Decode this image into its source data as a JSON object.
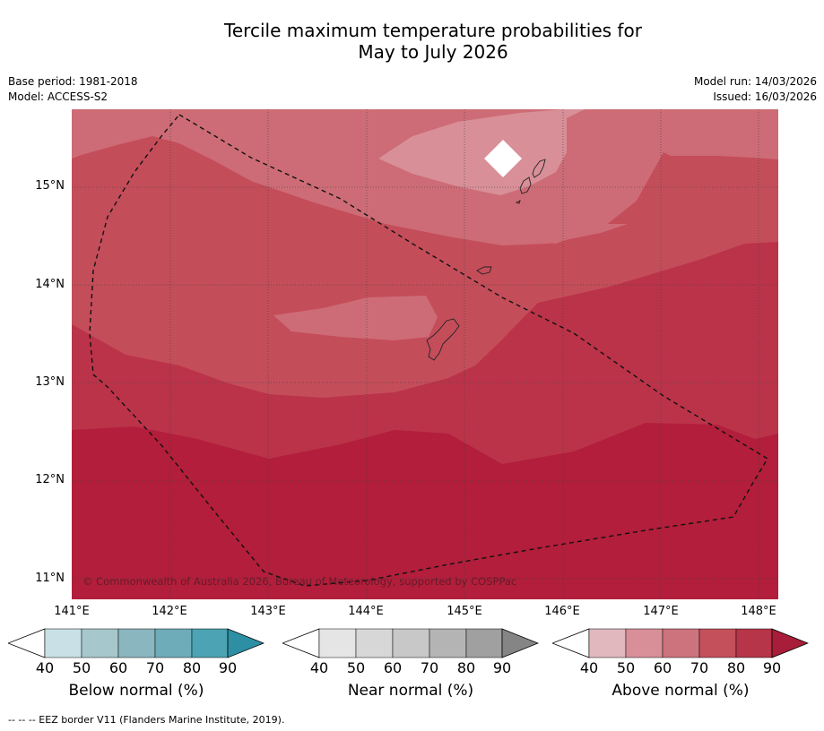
{
  "title": {
    "line1": "Tercile maximum temperature probabilities for",
    "line2": "May to July 2026"
  },
  "meta": {
    "base_period": "Base period: 1981-2018",
    "model": "Model: ACCESS-S2",
    "model_run": "Model run: 14/03/2026",
    "issued": "Issued: 16/03/2026"
  },
  "map": {
    "copyright": "© Commonwealth of Australia 2026, Bureau of Meteorology, supported by COSPPac",
    "lat_labels": [
      "15°N",
      "14°N",
      "13°N",
      "12°N",
      "11°N"
    ],
    "lon_labels": [
      "141°E",
      "142°E",
      "143°E",
      "144°E",
      "145°E",
      "146°E",
      "147°E",
      "148°E"
    ]
  },
  "colorbars": [
    {
      "label": "Below normal (%)",
      "ticks": [
        "40",
        "50",
        "60",
        "70",
        "80",
        "90"
      ],
      "colors": [
        "#c9e1e6",
        "#a6c7cc",
        "#8ab6c0",
        "#6eacba",
        "#4ba3b3",
        "#2d8fa3"
      ]
    },
    {
      "label": "Near normal (%)",
      "ticks": [
        "40",
        "50",
        "60",
        "70",
        "80",
        "90"
      ],
      "colors": [
        "#e5e5e5",
        "#d7d7d7",
        "#c8c8c8",
        "#b4b4b4",
        "#a0a0a0",
        "#858585"
      ]
    },
    {
      "label": "Above normal (%)",
      "ticks": [
        "40",
        "50",
        "60",
        "70",
        "80",
        "90"
      ],
      "colors": [
        "#e2b8bf",
        "#d88f98",
        "#cd737d",
        "#c4505c",
        "#b73549",
        "#a81d39"
      ]
    }
  ],
  "footnote": "--  --  -- EEZ border V11 (Flanders Marine Institute, 2019).",
  "colors": {
    "above_50": "#d88f98",
    "above_60": "#cd6c76",
    "above_70": "#c44d5a",
    "above_80": "#bb3349",
    "above_90": "#b21e3b"
  }
}
